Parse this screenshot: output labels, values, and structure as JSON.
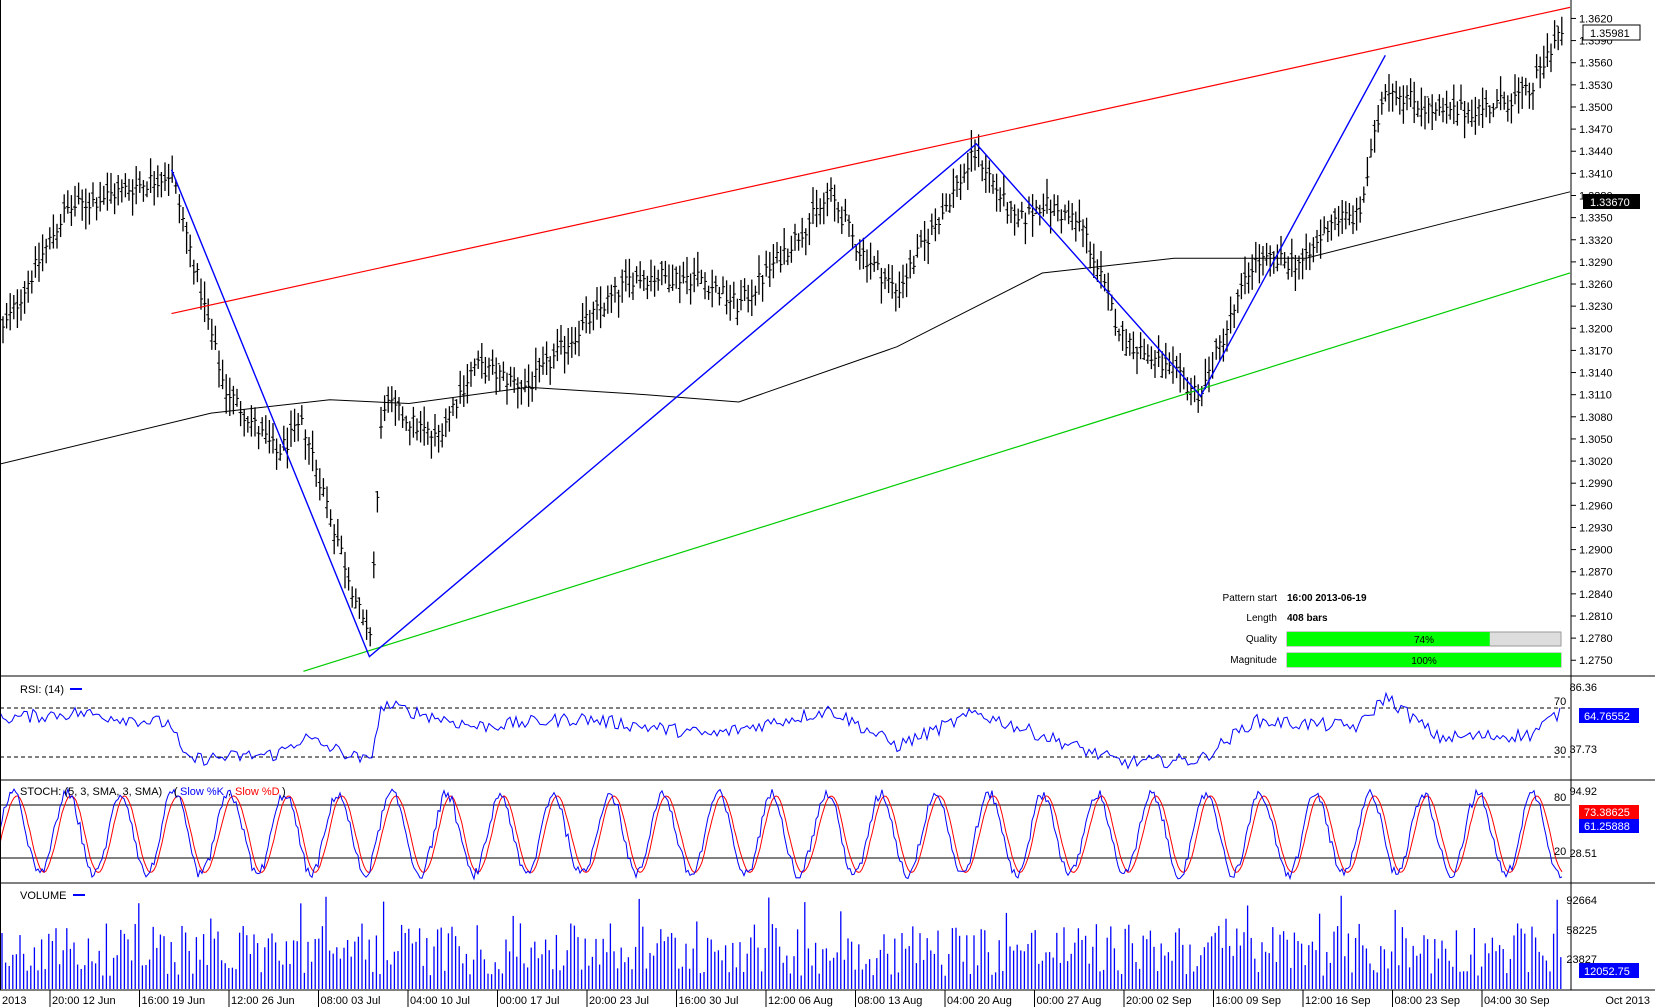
{
  "chart_data": [
    {
      "type": "ohlc",
      "panel": "price",
      "price_axis": {
        "ticks": [
          "1.2750",
          "1.2780",
          "1.2810",
          "1.2840",
          "1.2870",
          "1.2900",
          "1.2930",
          "1.2960",
          "1.2990",
          "1.3020",
          "1.3050",
          "1.3080",
          "1.3110",
          "1.3140",
          "1.3170",
          "1.3200",
          "1.3230",
          "1.3260",
          "1.3290",
          "1.3320",
          "1.3350",
          "1.3380",
          "1.3410",
          "1.3440",
          "1.3470",
          "1.3500",
          "1.3530",
          "1.3560",
          "1.3590",
          "1.3620"
        ],
        "range": [
          1.273,
          1.3645
        ]
      },
      "current_price_label": "1.35981",
      "ma_label": "1.33670",
      "pattern_zigzag": [
        {
          "date": "2013-06-19",
          "price": 1.3415
        },
        {
          "date": "2013-07-04",
          "price": 1.2755
        },
        {
          "date": "2013-08-19",
          "price": 1.345
        },
        {
          "date": "2013-09-05",
          "price": 1.3108
        },
        {
          "date": "2013-09-19",
          "price": 1.357
        }
      ],
      "resistance_line": [
        {
          "date": "2013-06-19",
          "price": 1.322
        },
        {
          "date": "2013-10-03",
          "price": 1.3635
        }
      ],
      "support_line": [
        {
          "date": "2013-06-29",
          "price": 1.2735
        },
        {
          "date": "2013-10-03",
          "price": 1.3275
        }
      ],
      "ma_path": [
        {
          "date": "2013-06-06",
          "price": 1.3016
        },
        {
          "date": "2013-06-22",
          "price": 1.3085
        },
        {
          "date": "2013-07-01",
          "price": 1.3103
        },
        {
          "date": "2013-07-07",
          "price": 1.3098
        },
        {
          "date": "2013-07-16",
          "price": 1.312
        },
        {
          "date": "2013-07-25",
          "price": 1.311
        },
        {
          "date": "2013-08-01",
          "price": 1.31
        },
        {
          "date": "2013-08-13",
          "price": 1.3175
        },
        {
          "date": "2013-08-24",
          "price": 1.3275
        },
        {
          "date": "2013-09-03",
          "price": 1.3295
        },
        {
          "date": "2013-09-13",
          "price": 1.3295
        },
        {
          "date": "2013-09-24",
          "price": 1.3345
        },
        {
          "date": "2013-10-03",
          "price": 1.3385
        }
      ],
      "series_anchors": [
        {
          "date": "2013-06-06",
          "price": 1.319
        },
        {
          "date": "2013-06-11",
          "price": 1.336
        },
        {
          "date": "2013-06-19",
          "price": 1.341
        },
        {
          "date": "2013-06-23",
          "price": 1.312
        },
        {
          "date": "2013-06-27",
          "price": 1.303
        },
        {
          "date": "2013-06-29",
          "price": 1.307
        },
        {
          "date": "2013-07-04",
          "price": 1.277
        },
        {
          "date": "2013-07-05",
          "price": 1.31
        },
        {
          "date": "2013-07-09",
          "price": 1.305
        },
        {
          "date": "2013-07-12",
          "price": 1.315
        },
        {
          "date": "2013-07-16",
          "price": 1.312
        },
        {
          "date": "2013-07-20",
          "price": 1.32
        },
        {
          "date": "2013-07-24",
          "price": 1.327
        },
        {
          "date": "2013-07-29",
          "price": 1.327
        },
        {
          "date": "2013-08-01",
          "price": 1.323
        },
        {
          "date": "2013-08-08",
          "price": 1.338
        },
        {
          "date": "2013-08-10",
          "price": 1.331
        },
        {
          "date": "2013-08-13",
          "price": 1.325
        },
        {
          "date": "2013-08-19",
          "price": 1.344
        },
        {
          "date": "2013-08-22",
          "price": 1.334
        },
        {
          "date": "2013-08-24",
          "price": 1.337
        },
        {
          "date": "2013-08-27",
          "price": 1.334
        },
        {
          "date": "2013-08-30",
          "price": 1.319
        },
        {
          "date": "2013-09-05",
          "price": 1.311
        },
        {
          "date": "2013-09-09",
          "price": 1.329
        },
        {
          "date": "2013-09-13",
          "price": 1.329
        },
        {
          "date": "2013-09-15",
          "price": 1.335
        },
        {
          "date": "2013-09-17",
          "price": 1.335
        },
        {
          "date": "2013-09-19",
          "price": 1.353
        },
        {
          "date": "2013-09-23",
          "price": 1.349
        },
        {
          "date": "2013-09-27",
          "price": 1.35
        },
        {
          "date": "2013-09-30",
          "price": 1.352
        },
        {
          "date": "2013-10-02",
          "price": 1.3598
        }
      ],
      "pattern_info": {
        "labels": [
          "Pattern start",
          "Length",
          "Quality",
          "Magnitude"
        ],
        "pattern_start": "16:00 2013-06-19",
        "length": "408 bars",
        "quality": 74,
        "quality_text": "74%",
        "magnitude": 100,
        "magnitude_text": "100%"
      }
    },
    {
      "type": "line",
      "panel": "rsi",
      "title": "RSI: (14)",
      "levels": {
        "upper": 70,
        "lower": 30
      },
      "axis_labels": {
        "top": "86.36",
        "mid": "37.73",
        "upper_level": "70",
        "lower_level": "30"
      },
      "range": [
        18,
        92
      ],
      "current_label": "64.76552",
      "series_anchors": [
        {
          "date": "2013-06-06",
          "value": 62
        },
        {
          "date": "2013-06-12",
          "value": 66
        },
        {
          "date": "2013-06-19",
          "value": 58
        },
        {
          "date": "2013-06-20",
          "value": 32
        },
        {
          "date": "2013-06-27",
          "value": 36
        },
        {
          "date": "2013-06-29",
          "value": 48
        },
        {
          "date": "2013-07-04",
          "value": 30
        },
        {
          "date": "2013-07-05",
          "value": 72
        },
        {
          "date": "2013-07-12",
          "value": 56
        },
        {
          "date": "2013-07-20",
          "value": 62
        },
        {
          "date": "2013-07-30",
          "value": 50
        },
        {
          "date": "2013-08-08",
          "value": 68
        },
        {
          "date": "2013-08-13",
          "value": 42
        },
        {
          "date": "2013-08-19",
          "value": 66
        },
        {
          "date": "2013-08-30",
          "value": 30
        },
        {
          "date": "2013-09-05",
          "value": 32
        },
        {
          "date": "2013-09-09",
          "value": 60
        },
        {
          "date": "2013-09-17",
          "value": 56
        },
        {
          "date": "2013-09-19",
          "value": 78
        },
        {
          "date": "2013-09-23",
          "value": 48
        },
        {
          "date": "2013-09-30",
          "value": 50
        },
        {
          "date": "2013-10-02",
          "value": 64.8
        }
      ]
    },
    {
      "type": "line",
      "panel": "stochastic",
      "title": "STOCH: (5, 3, SMA, 3, SMA)",
      "series": [
        {
          "name": "Slow %K",
          "color": "#0000ff",
          "current_label": "73.38625"
        },
        {
          "name": "Slow %D",
          "color": "#ff0000",
          "current_label": "61.25888"
        }
      ],
      "levels": {
        "upper": 80,
        "lower": 20
      },
      "axis_labels": {
        "top": "94.92",
        "mid": "28.51",
        "upper_level": "80",
        "lower_level": "20"
      },
      "range": [
        5,
        100
      ]
    },
    {
      "type": "bar",
      "panel": "volume",
      "title": "VOLUME",
      "axis_labels": [
        "92664",
        "58225",
        "23827"
      ],
      "range": [
        0,
        120000
      ],
      "current_label": "12052.75"
    }
  ],
  "x_axis": {
    "ticks": [
      "2013",
      "20:00 12 Jun",
      "16:00 19 Jun",
      "12:00 26 Jun",
      "08:00 03 Jul",
      "04:00 10 Jul",
      "00:00 17 Jul",
      "20:00 23 Jul",
      "16:00 30 Jul",
      "12:00 06 Aug",
      "08:00 13 Aug",
      "04:00 20 Aug",
      "00:00 27 Aug",
      "20:00 02 Sep",
      "16:00 09 Sep",
      "12:00 16 Sep",
      "08:00 23 Sep",
      "04:00 30 Sep"
    ],
    "end_label": "Oct 2013",
    "date_range": [
      "2013-06-06",
      "2013-10-03"
    ]
  },
  "colors": {
    "resistance": "#ff0000",
    "support": "#00cc00",
    "zigzag": "#0000ff",
    "moving_average": "#000000",
    "rsi_line": "#0000ff",
    "volume_bars": "#0000ff",
    "quality_fill": "#00ff00",
    "price_label_bg": "#000000",
    "stoch_k_label_bg": "#ff0000",
    "stoch_d_label_bg": "#0000ff",
    "rsi_label_bg": "#0000ff"
  }
}
